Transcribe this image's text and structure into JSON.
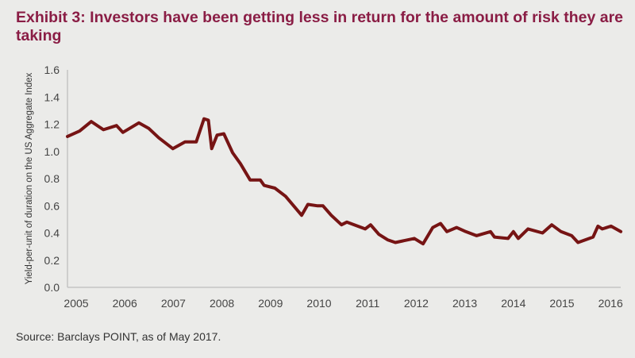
{
  "title": "Exhibit 3: Investors have been getting less in return for the amount of risk they are taking",
  "source": "Source: Barclays POINT, as of May 2017.",
  "colors": {
    "title": "#8a1d45",
    "line": "#761414",
    "axis": "#c4c4c4",
    "background": "#ebebe9"
  },
  "chart_data": {
    "type": "line",
    "title": "Exhibit 3: Investors have been getting less in return for the amount of risk they are taking",
    "xlabel": "",
    "ylabel": "Yield-per-unit of duration on the US Aggregate Index",
    "xlim": [
      2004.82,
      2016.21
    ],
    "ylim": [
      0,
      1.6
    ],
    "grid": false,
    "legend": "none",
    "x_ticks": [
      "2005",
      "2006",
      "2007",
      "2008",
      "2009",
      "2010",
      "2011",
      "2012",
      "2013",
      "2014",
      "2015",
      "2016"
    ],
    "y_ticks": [
      "0.0",
      "0.2",
      "0.4",
      "0.6",
      "0.8",
      "1.0",
      "1.2",
      "1.4",
      "1.6"
    ],
    "series": [
      {
        "name": "Yield-per-unit of duration",
        "x": [
          2004.82,
          2005.07,
          2005.31,
          2005.56,
          2005.83,
          2005.96,
          2006.29,
          2006.49,
          2006.7,
          2006.99,
          2007.24,
          2007.47,
          2007.63,
          2007.72,
          2007.79,
          2007.9,
          2008.04,
          2008.22,
          2008.38,
          2008.58,
          2008.79,
          2008.87,
          2009.09,
          2009.31,
          2009.64,
          2009.77,
          2009.97,
          2010.08,
          2010.25,
          2010.46,
          2010.57,
          2010.95,
          2011.06,
          2011.23,
          2011.41,
          2011.57,
          2011.96,
          2012.14,
          2012.34,
          2012.5,
          2012.63,
          2012.83,
          2013.02,
          2013.24,
          2013.53,
          2013.61,
          2013.89,
          2014.0,
          2014.1,
          2014.3,
          2014.6,
          2014.79,
          2014.98,
          2015.2,
          2015.33,
          2015.64,
          2015.74,
          2015.83,
          2016.01,
          2016.21
        ],
        "y": [
          1.11,
          1.15,
          1.22,
          1.16,
          1.19,
          1.14,
          1.21,
          1.17,
          1.1,
          1.02,
          1.07,
          1.07,
          1.24,
          1.23,
          1.02,
          1.12,
          1.13,
          0.99,
          0.91,
          0.79,
          0.79,
          0.75,
          0.73,
          0.67,
          0.53,
          0.61,
          0.6,
          0.6,
          0.53,
          0.46,
          0.48,
          0.43,
          0.46,
          0.39,
          0.35,
          0.33,
          0.36,
          0.32,
          0.44,
          0.47,
          0.41,
          0.44,
          0.41,
          0.38,
          0.41,
          0.37,
          0.36,
          0.41,
          0.36,
          0.43,
          0.4,
          0.46,
          0.41,
          0.38,
          0.33,
          0.37,
          0.45,
          0.43,
          0.45,
          0.41
        ]
      }
    ]
  }
}
